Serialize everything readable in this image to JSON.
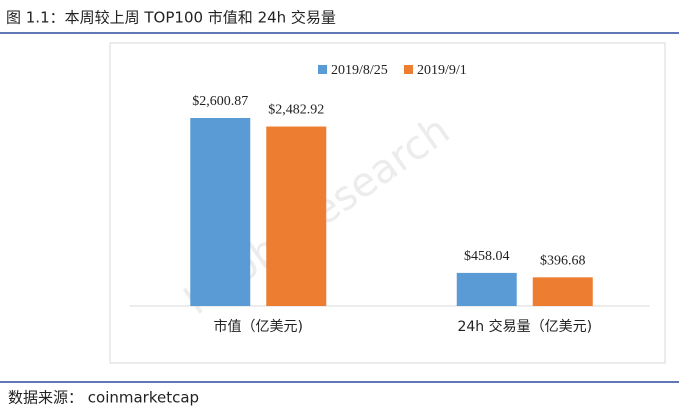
{
  "chart_data": {
    "type": "bar",
    "title": "图 1.1：本周较上周 TOP100 市值和 24h 交易量",
    "categories": [
      "市值（亿美元)",
      "24h 交易量（亿美元)"
    ],
    "series": [
      {
        "name": "2019/8/25",
        "color": "#5b9bd5",
        "values": [
          2600.87,
          458.04
        ],
        "value_labels": [
          "$2,600.87",
          "$458.04"
        ]
      },
      {
        "name": "2019/9/1",
        "color": "#ed7d31",
        "values": [
          2482.92,
          396.68
        ],
        "value_labels": [
          "$2,482.92",
          "$396.68"
        ]
      }
    ],
    "source": "数据来源： coinmarketcap",
    "watermark": "Huobi Research"
  }
}
